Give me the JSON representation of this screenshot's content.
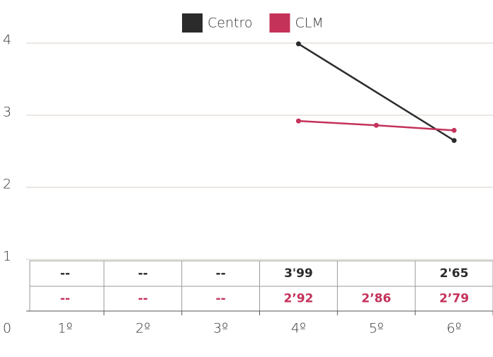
{
  "chart_data": {
    "type": "line",
    "categories": [
      "1º",
      "2º",
      "3º",
      "4º",
      "5º",
      "6º"
    ],
    "series": [
      {
        "name": "Centro",
        "color": "#2b2b2b",
        "values": [
          null,
          null,
          null,
          3.99,
          null,
          2.65
        ],
        "value_labels": [
          "--",
          "--",
          "--",
          "3'99",
          null,
          "2'65"
        ]
      },
      {
        "name": "CLM",
        "color": "#c4325a",
        "values": [
          null,
          null,
          null,
          2.92,
          2.86,
          2.79
        ],
        "value_labels": [
          "--",
          "--",
          "--",
          "2’92",
          "2’86",
          "2’79"
        ]
      }
    ],
    "ylim": [
      0,
      4
    ],
    "yticks": [
      0,
      1,
      2,
      3,
      4
    ],
    "grid": true
  }
}
